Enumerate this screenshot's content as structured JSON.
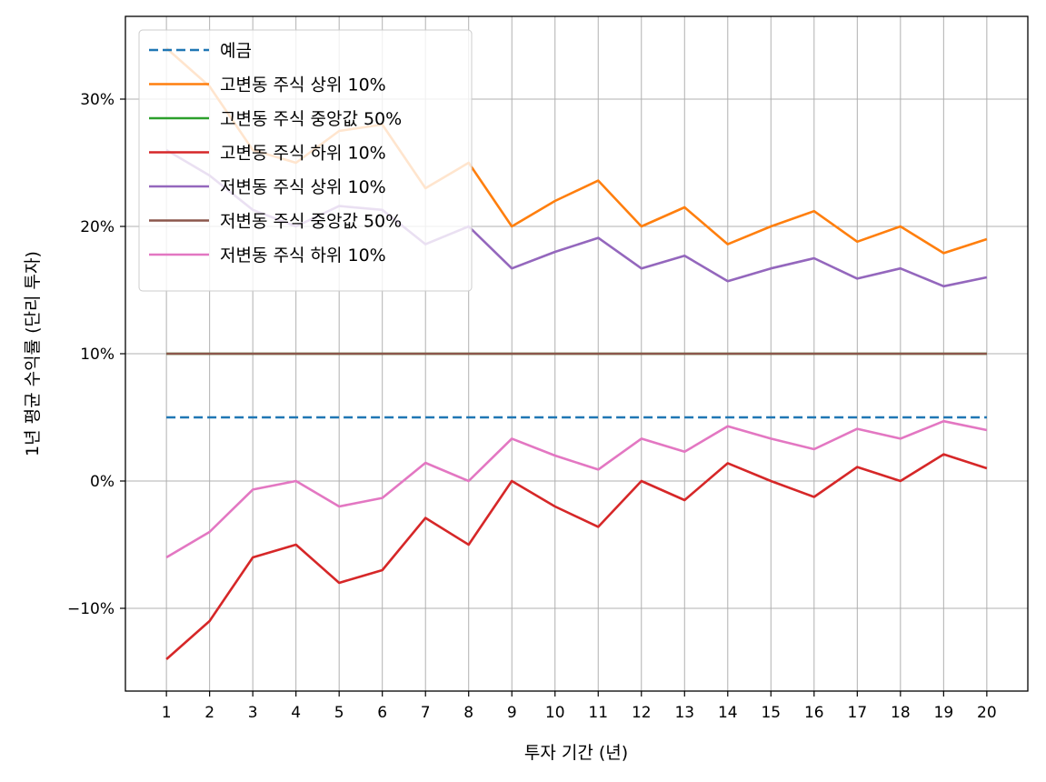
{
  "chart_data": {
    "type": "line",
    "xlabel": "투자 기간 (년)",
    "ylabel": "1년 평균 수익률 (단리 투자)",
    "x": [
      1,
      2,
      3,
      4,
      5,
      6,
      7,
      8,
      9,
      10,
      11,
      12,
      13,
      14,
      15,
      16,
      17,
      18,
      19,
      20
    ],
    "xticks": [
      "1",
      "2",
      "3",
      "4",
      "5",
      "6",
      "7",
      "8",
      "9",
      "10",
      "11",
      "12",
      "13",
      "14",
      "15",
      "16",
      "17",
      "18",
      "19",
      "20"
    ],
    "yticks": [
      {
        "value": -10,
        "label": "−10%"
      },
      {
        "value": 0,
        "label": "0%"
      },
      {
        "value": 10,
        "label": "10%"
      },
      {
        "value": 20,
        "label": "20%"
      },
      {
        "value": 30,
        "label": "30%"
      }
    ],
    "xlim": [
      0.05,
      20.95
    ],
    "ylim": [
      -16.5,
      36.5
    ],
    "grid": true,
    "legend_position": "upper-left",
    "series": [
      {
        "name": "예금",
        "color": "#1f77b4",
        "dashed": true,
        "values": [
          5,
          5,
          5,
          5,
          5,
          5,
          5,
          5,
          5,
          5,
          5,
          5,
          5,
          5,
          5,
          5,
          5,
          5,
          5,
          5
        ]
      },
      {
        "name": "고변동 주식 상위 10%",
        "color": "#ff7f0e",
        "dashed": false,
        "values": [
          34,
          31,
          26,
          25,
          27.5,
          28,
          23,
          25,
          20,
          22,
          23.6,
          20,
          21.5,
          18.6,
          20,
          21.2,
          18.8,
          20,
          17.9,
          19
        ]
      },
      {
        "name": "고변동 주식 중앙값 50%",
        "color": "#2ca02c",
        "dashed": false,
        "values": [
          10,
          10,
          10,
          10,
          10,
          10,
          10,
          10,
          10,
          10,
          10,
          10,
          10,
          10,
          10,
          10,
          10,
          10,
          10,
          10
        ]
      },
      {
        "name": "고변동 주식 하위 10%",
        "color": "#d62728",
        "dashed": false,
        "values": [
          -14,
          -11,
          -6,
          -5,
          -8,
          -7,
          -2.9,
          -5,
          0,
          -2,
          -3.6,
          0,
          -1.5,
          1.4,
          0,
          -1.25,
          1.1,
          0,
          2.1,
          1
        ]
      },
      {
        "name": "저변동 주식 상위 10%",
        "color": "#9467bd",
        "dashed": false,
        "values": [
          26,
          24,
          21.3,
          20,
          21.6,
          21.3,
          18.6,
          20,
          16.7,
          18,
          19.1,
          16.7,
          17.7,
          15.7,
          16.7,
          17.5,
          15.9,
          16.7,
          15.3,
          16
        ]
      },
      {
        "name": "저변동 주식 중앙값 50%",
        "color": "#8c564b",
        "dashed": false,
        "values": [
          10,
          10,
          10,
          10,
          10,
          10,
          10,
          10,
          10,
          10,
          10,
          10,
          10,
          10,
          10,
          10,
          10,
          10,
          10,
          10
        ]
      },
      {
        "name": "저변동 주식 하위 10%",
        "color": "#e377c2",
        "dashed": false,
        "values": [
          -6,
          -4,
          -0.67,
          0,
          -2,
          -1.33,
          1.43,
          0,
          3.33,
          2,
          0.9,
          3.33,
          2.3,
          4.3,
          3.33,
          2.5,
          4.1,
          3.33,
          4.7,
          4
        ]
      }
    ]
  }
}
